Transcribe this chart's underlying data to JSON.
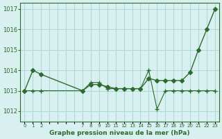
{
  "x": [
    0,
    1,
    2,
    7,
    8,
    9,
    10,
    11,
    12,
    13,
    14,
    15,
    16,
    17,
    18,
    19,
    20,
    21,
    22,
    23
  ],
  "line1": [
    1013.0,
    1014.0,
    1013.8,
    1013.0,
    1013.3,
    1013.3,
    1013.2,
    1013.1,
    1013.1,
    1013.1,
    1013.1,
    1013.6,
    1013.5,
    1013.5,
    1013.5,
    1013.5,
    1013.9,
    1015.0,
    1016.0,
    1017.0
  ],
  "line2": [
    1013.0,
    1013.0,
    1013.0,
    1013.0,
    1013.4,
    1013.4,
    1013.1,
    1013.1,
    1013.1,
    1013.1,
    1013.1,
    1014.0,
    1012.1,
    1013.0,
    1013.0,
    1013.0,
    1013.0,
    1013.0,
    1013.0,
    1013.0
  ],
  "line_color": "#2d6a2d",
  "bg_color": "#d8f0f0",
  "grid_color": "#b0d8d8",
  "xlabel": "Graphe pression niveau de la mer (hPa)",
  "yticks": [
    1012,
    1013,
    1014,
    1015,
    1016,
    1017
  ],
  "xtick_labels": [
    "0",
    "1",
    "2",
    "",
    "",
    "",
    "",
    "7",
    "8",
    "9",
    "10",
    "11",
    "12",
    "13",
    "14",
    "15",
    "16",
    "17",
    "18",
    "19",
    "20",
    "21",
    "22",
    "23"
  ],
  "xlim": [
    -0.5,
    23.5
  ],
  "ylim": [
    1011.5,
    1017.3
  ]
}
